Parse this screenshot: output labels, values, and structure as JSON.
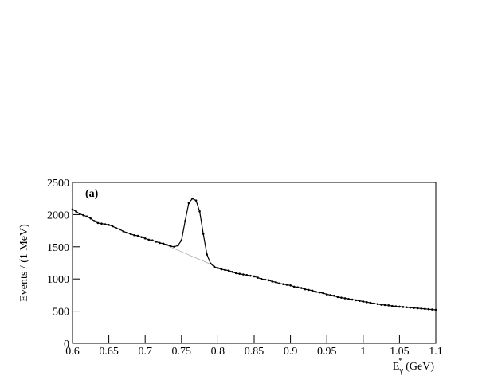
{
  "chart_data": {
    "type": "line",
    "y_label": "Events / (1 MeV)",
    "x_label": {
      "symbol": "E",
      "subscript": "γ",
      "superscript": "*",
      "unit": "(GeV)"
    },
    "annotation": "(a)",
    "xlim": [
      0.6,
      1.1
    ],
    "xticks": [
      0.6,
      0.65,
      0.7,
      0.75,
      0.8,
      0.85,
      0.9,
      0.95,
      1,
      1.05,
      1.1
    ],
    "ylim": [
      0,
      2500
    ],
    "yticks": [
      0,
      500,
      1000,
      1500,
      2000,
      2500
    ],
    "series": [
      {
        "color": "#000000",
        "x": [
          0.6,
          0.605,
          0.61,
          0.615,
          0.62,
          0.625,
          0.63,
          0.635,
          0.64,
          0.645,
          0.65,
          0.655,
          0.66,
          0.665,
          0.67,
          0.675,
          0.68,
          0.685,
          0.69,
          0.695,
          0.7,
          0.705,
          0.71,
          0.715,
          0.72,
          0.725,
          0.73,
          0.735,
          0.74,
          0.745,
          0.75,
          0.755,
          0.76,
          0.765,
          0.77,
          0.775,
          0.78,
          0.785,
          0.79,
          0.795,
          0.8,
          0.805,
          0.81,
          0.815,
          0.82,
          0.825,
          0.83,
          0.835,
          0.84,
          0.845,
          0.85,
          0.855,
          0.86,
          0.865,
          0.87,
          0.875,
          0.88,
          0.885,
          0.89,
          0.895,
          0.9,
          0.905,
          0.91,
          0.915,
          0.92,
          0.925,
          0.93,
          0.935,
          0.94,
          0.945,
          0.95,
          0.955,
          0.96,
          0.965,
          0.97,
          0.975,
          0.98,
          0.985,
          0.99,
          0.995,
          1,
          1.005,
          1.01,
          1.015,
          1.02,
          1.025,
          1.03,
          1.035,
          1.04,
          1.045,
          1.05,
          1.055,
          1.06,
          1.065,
          1.07,
          1.075,
          1.08,
          1.085,
          1.09,
          1.095,
          1.1
        ],
        "values": [
          2080,
          2050,
          2010,
          1990,
          1970,
          1940,
          1900,
          1870,
          1860,
          1850,
          1840,
          1820,
          1790,
          1770,
          1740,
          1720,
          1700,
          1680,
          1670,
          1650,
          1630,
          1610,
          1600,
          1580,
          1560,
          1550,
          1530,
          1510,
          1500,
          1520,
          1600,
          1900,
          2180,
          2250,
          2220,
          2050,
          1700,
          1380,
          1240,
          1190,
          1170,
          1150,
          1140,
          1130,
          1110,
          1090,
          1080,
          1070,
          1060,
          1050,
          1040,
          1020,
          1000,
          990,
          980,
          960,
          950,
          930,
          920,
          910,
          900,
          880,
          870,
          860,
          840,
          830,
          820,
          800,
          790,
          780,
          760,
          750,
          740,
          720,
          710,
          700,
          690,
          680,
          670,
          660,
          650,
          640,
          630,
          620,
          610,
          600,
          595,
          590,
          580,
          575,
          570,
          565,
          560,
          555,
          550,
          545,
          540,
          535,
          530,
          525,
          520
        ]
      },
      {
        "color": "#aaaaaa",
        "x": [
          0.73,
          0.79
        ],
        "values": [
          1520,
          1230
        ]
      }
    ]
  }
}
